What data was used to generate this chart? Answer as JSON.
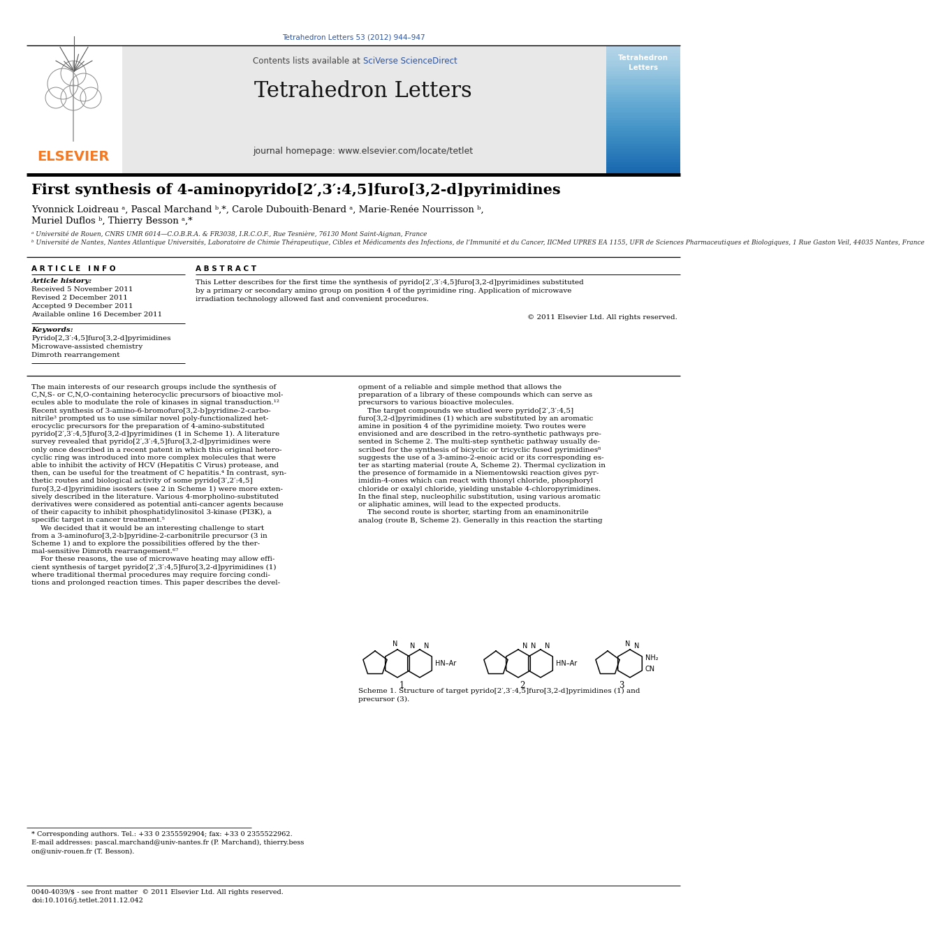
{
  "page_bg": "#ffffff",
  "top_citation": "Tetrahedron Letters 53 (2012) 944–947",
  "top_citation_color": "#2a52a0",
  "header_bg": "#e8e8e8",
  "header_border_top_color": "#000000",
  "header_border_bot_color": "#000000",
  "elsevier_color": "#f47920",
  "cover_bg": "#2a52a0",
  "title": "First synthesis of 4-aminopyrido[2′,3′:4,5]furo[3,2-d]pyrimidines",
  "author_line1": "Yvonnick Loidreau ᵃ, Pascal Marchand ᵇ,*, Carole Dubouith-Benard ᵃ, Marie-Renée Nourrisson ᵇ,",
  "author_line2": "Muriel Duflos ᵇ, Thierry Besson ᵃ,*",
  "affil_a": "ᵃ Université de Rouen, CNRS UMR 6014—C.O.B.R.A. & FR3038, I.R.C.O.F., Rue Tesnière, 76130 Mont Saint-Aignan, France",
  "affil_b": "ᵇ Université de Nantes, Nantes Atlantique Universités, Laboratoire de Chimie Thérapeutique, Cibles et Médicaments des Infections, de l’Immunité et du Cancer, IICMed UPRES EA 1155, UFR de Sciences Pharmaceutiques et Biologiques, 1 Rue Gaston Veil, 44035 Nantes, France",
  "article_info_title": "A R T I C L E   I N F O",
  "article_history_label": "Article history:",
  "received": "Received 5 November 2011",
  "revised": "Revised 2 December 2011",
  "accepted": "Accepted 9 December 2011",
  "available": "Available online 16 December 2011",
  "keywords_label": "Keywords:",
  "keyword1": "Pyrido[2,3′:4,5]furo[3,2-d]pyrimidines",
  "keyword2": "Microwave-assisted chemistry",
  "keyword3": "Dimroth rearrangement",
  "abstract_title": "A B S T R A C T",
  "abstract_text1": "This Letter describes for the first time the synthesis of pyrido[2′,3′:4,5]furo[3,2-d]pyrimidines substituted",
  "abstract_text2": "by a primary or secondary amino group on position 4 of the pyrimidine ring. Application of microwave",
  "abstract_text3": "irradiation technology allowed fast and convenient procedures.",
  "copyright": "© 2011 Elsevier Ltd. All rights reserved.",
  "body_left": [
    "The main interests of our research groups include the synthesis of",
    "C,N,S- or C,N,O-containing heterocyclic precursors of bioactive mol-",
    "ecules able to modulate the role of kinases in signal transduction.¹²",
    "Recent synthesis of 3-amino-6-bromofuro[3,2-b]pyridine-2-carbo-",
    "nitrile³ prompted us to use similar novel poly-functionalized het-",
    "erocyclic precursors for the preparation of 4-amino-substituted",
    "pyrido[2′,3′:4,5]furo[3,2-d]pyrimidines (1 in Scheme 1). A literature",
    "survey revealed that pyrido[2′,3′:4,5]furo[3,2-d]pyrimidines were",
    "only once described in a recent patent in which this original hetero-",
    "cyclic ring was introduced into more complex molecules that were",
    "able to inhibit the activity of HCV (Hepatitis C Virus) protease, and",
    "then, can be useful for the treatment of C hepatitis.⁴ In contrast, syn-",
    "thetic routes and biological activity of some pyrido[3′,2′:4,5]",
    "furo[3,2-d]pyrimidine isosters (see 2 in Scheme 1) were more exten-",
    "sively described in the literature. Various 4-morpholino-substituted",
    "derivatives were considered as potential anti-cancer agents because",
    "of their capacity to inhibit phosphatidylinositol 3-kinase (PI3K), a",
    "specific target in cancer treatment.⁵",
    "    We decided that it would be an interesting challenge to start",
    "from a 3-aminofuro[3,2-b]pyridine-2-carbonitrile precursor (3 in",
    "Scheme 1) and to explore the possibilities offered by the ther-",
    "mal-sensitive Dimroth rearrangement.⁶⁷",
    "    For these reasons, the use of microwave heating may allow effi-",
    "cient synthesis of target pyrido[2′,3′:4,5]furo[3,2-d]pyrimidines (1)",
    "where traditional thermal procedures may require forcing condi-",
    "tions and prolonged reaction times. This paper describes the devel-"
  ],
  "body_right": [
    "opment of a reliable and simple method that allows the",
    "preparation of a library of these compounds which can serve as",
    "precursors to various bioactive molecules.",
    "    The target compounds we studied were pyrido[2′,3′:4,5]",
    "furo[3,2-d]pyrimidines (1) which are substituted by an aromatic",
    "amine in position 4 of the pyrimidine moiety. Two routes were",
    "envisioned and are described in the retro-synthetic pathways pre-",
    "sented in Scheme 2. The multi-step synthetic pathway usually de-",
    "scribed for the synthesis of bicyclic or tricyclic fused pyrimidines⁸",
    "suggests the use of a 3-amino-2-enoic acid or its corresponding es-",
    "ter as starting material (route A, Scheme 2). Thermal cyclization in",
    "the presence of formamide in a Niementowski reaction gives pyr-",
    "imidin-4-ones which can react with thionyl chloride, phosphoryl",
    "chloride or oxalyl chloride, yielding unstable 4-chloropyrimidines.",
    "In the final step, nucleophilic substitution, using various aromatic",
    "or aliphatic amines, will lead to the expected products.",
    "    The second route is shorter, starting from an enaminonitrile",
    "analog (route B, Scheme 2). Generally in this reaction the starting"
  ],
  "footnote_star": "* Corresponding authors. Tel.: +33 0 2355592904; fax: +33 0 2355522962.",
  "footnote_email1": "E-mail addresses: pascal.marchand@univ-nantes.fr (P. Marchand), thierry.bess",
  "footnote_email2": "on@univ-rouen.fr (T. Besson).",
  "footer_issn": "0040-4039/$ - see front matter  © 2011 Elsevier Ltd. All rights reserved.",
  "footer_doi": "doi:10.1016/j.tetlet.2011.12.042",
  "scheme_caption1": "Scheme 1. Structure of target pyrido[2′,3′:4,5]furo[3,2-d]pyrimidines (1) and",
  "scheme_caption2": "precursor (3)."
}
